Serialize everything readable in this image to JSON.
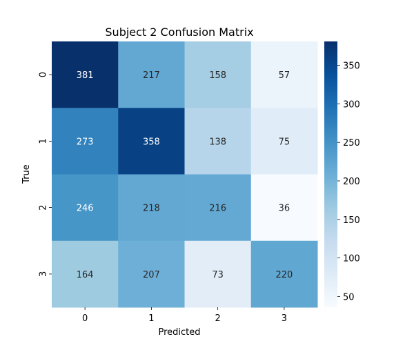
{
  "chart_data": {
    "type": "heatmap",
    "title": "Subject 2 Confusion Matrix",
    "xlabel": "Predicted",
    "ylabel": "True",
    "x_categories": [
      "0",
      "1",
      "2",
      "3"
    ],
    "y_categories": [
      "0",
      "1",
      "2",
      "3"
    ],
    "values": [
      [
        381,
        217,
        158,
        57
      ],
      [
        273,
        358,
        138,
        75
      ],
      [
        246,
        218,
        216,
        36
      ],
      [
        164,
        207,
        73,
        220
      ]
    ],
    "colorbar": {
      "min": 36,
      "max": 381,
      "ticks": [
        50,
        100,
        150,
        200,
        250,
        300,
        350
      ],
      "colormap": "Blues"
    },
    "grid": false
  }
}
